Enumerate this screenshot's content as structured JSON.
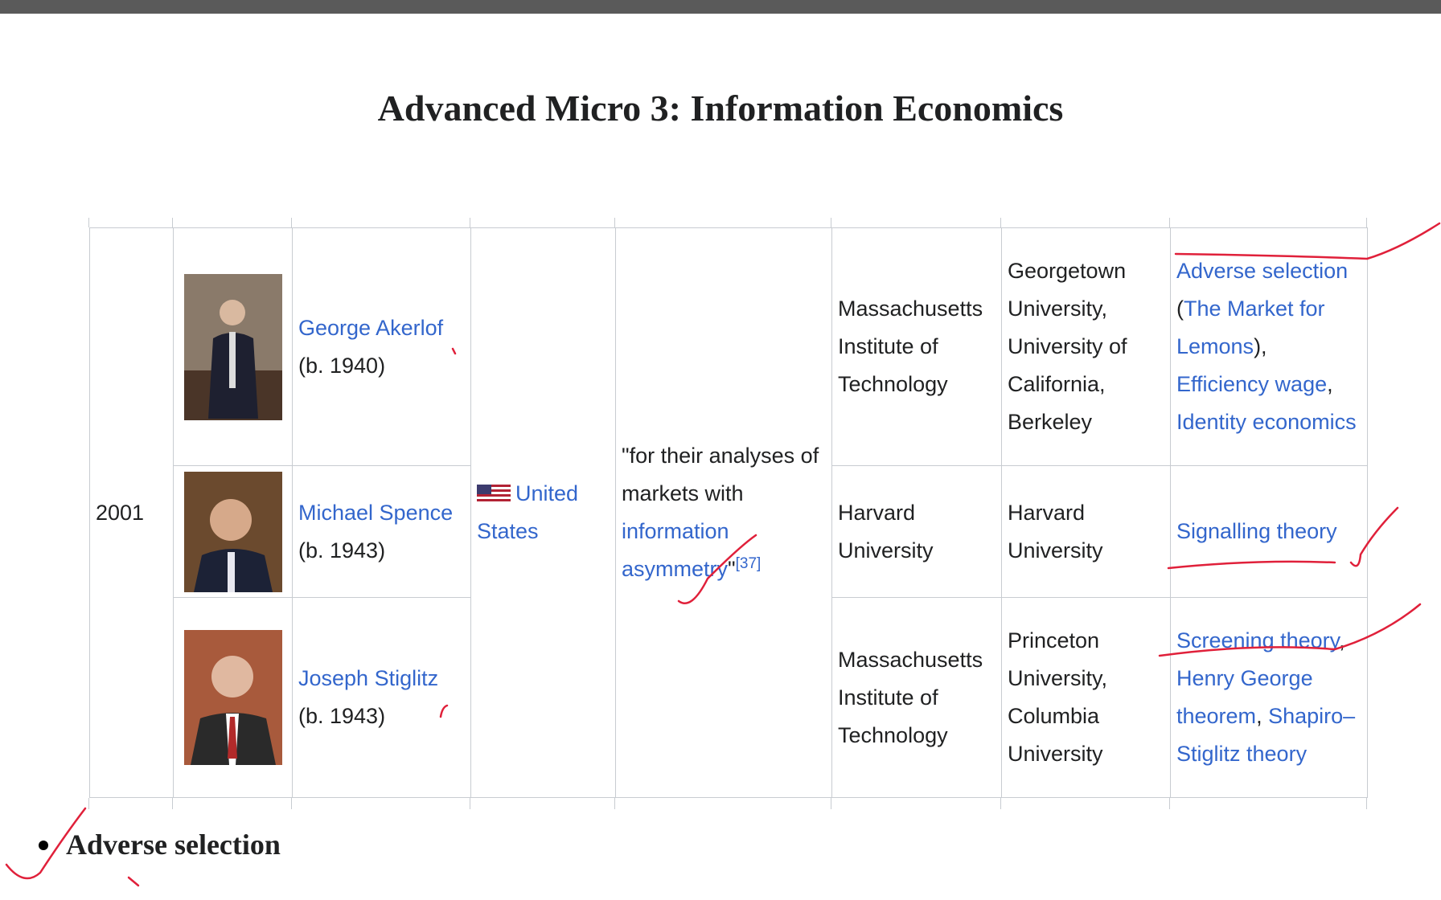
{
  "title": "Advanced Micro 3: Information Economics",
  "table": {
    "year": "2001",
    "country": "United States",
    "motivation": [
      {
        "text": "\"for their analyses of markets with "
      },
      {
        "link": "information asymmetry"
      },
      {
        "text": "\""
      },
      {
        "ref": "[37]"
      }
    ],
    "laureates": [
      {
        "name": "George Akerlof",
        "born": "(b. 1940)",
        "affiliation": "Massachusetts Institute of Technology",
        "other_affiliation": "Georgetown University, University of California, Berkeley",
        "contributions": [
          {
            "link": "Adverse selection"
          },
          {
            "text": " ("
          },
          {
            "link": "The Market for Lemons"
          },
          {
            "text": "), "
          },
          {
            "link": "Efficiency wage"
          },
          {
            "text": ", "
          },
          {
            "link": "Identity economics"
          }
        ]
      },
      {
        "name": "Michael Spence",
        "born": "(b. 1943)",
        "affiliation": "Harvard University",
        "other_affiliation": "Harvard University",
        "contributions": [
          {
            "link": "Signalling theory"
          }
        ]
      },
      {
        "name": "Joseph Stiglitz",
        "born": "(b. 1943)",
        "affiliation": "Massachusetts Institute of Technology",
        "other_affiliation": "Princeton University, Columbia University",
        "contributions": [
          {
            "link": "Screening theory"
          },
          {
            "text": ", "
          },
          {
            "link": "Henry George theorem"
          },
          {
            "text": ", "
          },
          {
            "link": "Shapiro–Stiglitz theory"
          }
        ]
      }
    ]
  },
  "bullets": [
    "Adverse selection"
  ]
}
